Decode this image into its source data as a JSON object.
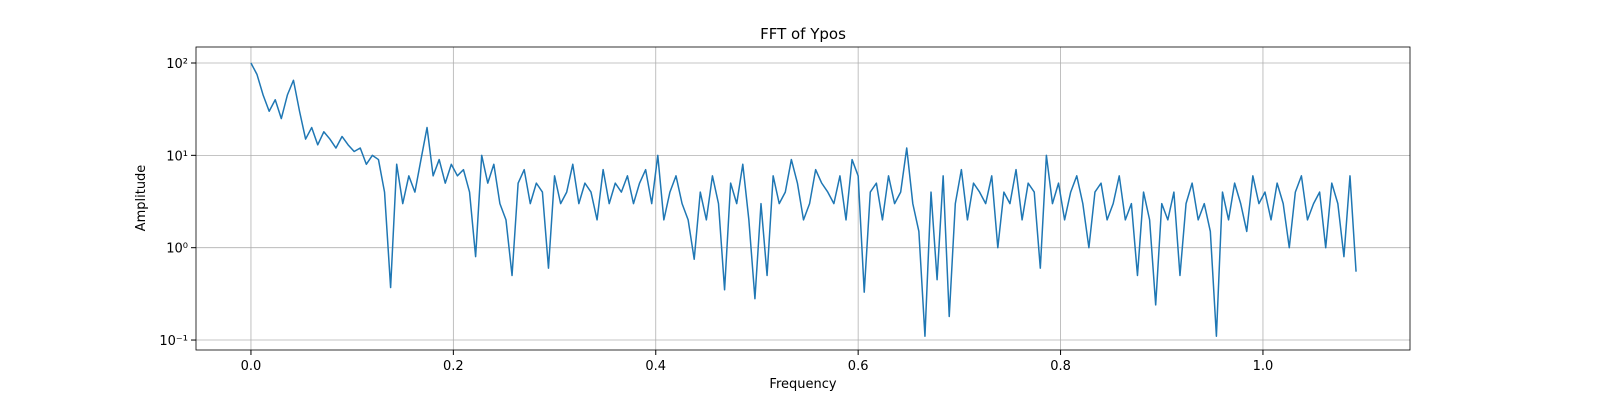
{
  "chart_data": {
    "type": "line",
    "title": "FFT of Ypos",
    "xlabel": "Frequency",
    "ylabel": "Amplitude",
    "yscale": "log",
    "grid": true,
    "xlim": [
      -0.0543,
      1.1453
    ],
    "ylim": [
      0.078,
      149
    ],
    "xticks": [
      {
        "value": 0,
        "label": "0.0"
      },
      0.2,
      0.4,
      0.6,
      0.8,
      {
        "value": 1,
        "label": "1.0"
      }
    ],
    "yticks": [
      {
        "value": 0.1,
        "label": "10⁻¹"
      },
      {
        "value": 1,
        "label": "10⁰"
      },
      {
        "value": 10,
        "label": "10¹"
      },
      {
        "value": 100,
        "label": "10²"
      }
    ],
    "x": [
      0.0,
      0.006,
      0.012,
      0.018,
      0.024,
      0.03,
      0.036,
      0.042,
      0.048,
      0.054,
      0.06,
      0.066,
      0.072,
      0.078,
      0.084,
      0.09,
      0.096,
      0.102,
      0.108,
      0.114,
      0.12,
      0.126,
      0.132,
      0.138,
      0.144,
      0.15,
      0.156,
      0.162,
      0.168,
      0.174,
      0.18,
      0.186,
      0.192,
      0.198,
      0.204,
      0.21,
      0.216,
      0.222,
      0.228,
      0.234,
      0.24,
      0.246,
      0.252,
      0.258,
      0.264,
      0.27,
      0.276,
      0.282,
      0.288,
      0.294,
      0.3,
      0.306,
      0.312,
      0.318,
      0.324,
      0.33,
      0.336,
      0.342,
      0.348,
      0.354,
      0.36,
      0.366,
      0.372,
      0.378,
      0.384,
      0.39,
      0.396,
      0.402,
      0.408,
      0.414,
      0.42,
      0.426,
      0.432,
      0.438,
      0.444,
      0.45,
      0.456,
      0.462,
      0.468,
      0.474,
      0.48,
      0.486,
      0.492,
      0.498,
      0.504,
      0.51,
      0.516,
      0.522,
      0.528,
      0.534,
      0.54,
      0.546,
      0.552,
      0.558,
      0.564,
      0.57,
      0.576,
      0.582,
      0.588,
      0.594,
      0.6,
      0.606,
      0.612,
      0.618,
      0.624,
      0.63,
      0.636,
      0.642,
      0.648,
      0.654,
      0.66,
      0.666,
      0.672,
      0.678,
      0.684,
      0.69,
      0.696,
      0.702,
      0.708,
      0.714,
      0.72,
      0.726,
      0.732,
      0.738,
      0.744,
      0.75,
      0.756,
      0.762,
      0.768,
      0.774,
      0.78,
      0.786,
      0.792,
      0.798,
      0.804,
      0.81,
      0.816,
      0.822,
      0.828,
      0.834,
      0.84,
      0.846,
      0.852,
      0.858,
      0.864,
      0.87,
      0.876,
      0.882,
      0.888,
      0.894,
      0.9,
      0.906,
      0.912,
      0.918,
      0.924,
      0.93,
      0.936,
      0.942,
      0.948,
      0.954,
      0.96,
      0.966,
      0.972,
      0.978,
      0.984,
      0.99,
      0.996,
      1.002,
      1.008,
      1.014,
      1.02,
      1.026,
      1.032,
      1.038,
      1.044,
      1.05,
      1.056,
      1.062,
      1.068,
      1.074,
      1.08,
      1.086,
      1.092
    ],
    "series": [
      {
        "name": "Ypos",
        "color": "#1f77b4",
        "values": [
          100,
          75,
          45,
          30,
          40,
          25,
          45,
          65,
          30,
          15,
          20,
          13,
          18,
          15,
          12,
          16,
          13,
          11,
          12,
          8,
          10,
          9,
          4,
          0.37,
          8,
          3,
          6,
          4,
          9,
          20,
          6,
          9,
          5,
          8,
          6,
          7,
          4,
          0.8,
          10,
          5,
          8,
          3,
          2,
          0.5,
          5,
          7,
          3,
          5,
          4,
          0.6,
          6,
          3,
          4,
          8,
          3,
          5,
          4,
          2,
          7,
          3,
          5,
          4,
          6,
          3,
          5,
          7,
          3,
          10,
          2,
          4,
          6,
          3,
          2,
          0.75,
          4,
          2,
          6,
          3,
          0.35,
          5,
          3,
          8,
          2,
          0.28,
          3,
          0.5,
          6,
          3,
          4,
          9,
          5,
          2,
          3,
          7,
          5,
          4,
          3,
          6,
          2,
          9,
          6,
          0.33,
          4,
          5,
          2,
          6,
          3,
          4,
          12,
          3,
          1.5,
          0.11,
          4,
          0.45,
          6,
          0.18,
          3,
          7,
          2,
          5,
          4,
          3,
          6,
          1,
          4,
          3,
          7,
          2,
          5,
          4,
          0.6,
          10,
          3,
          5,
          2,
          4,
          6,
          3,
          1,
          4,
          5,
          2,
          3,
          6,
          2,
          3,
          0.5,
          4,
          2,
          0.24,
          3,
          2,
          4,
          0.5,
          3,
          5,
          2,
          3,
          1.5,
          0.11,
          4,
          2,
          5,
          3,
          1.5,
          6,
          3,
          4,
          2,
          5,
          3,
          1,
          4,
          6,
          2,
          3,
          4,
          1,
          5,
          3,
          0.8,
          6,
          0.55
        ]
      }
    ]
  }
}
